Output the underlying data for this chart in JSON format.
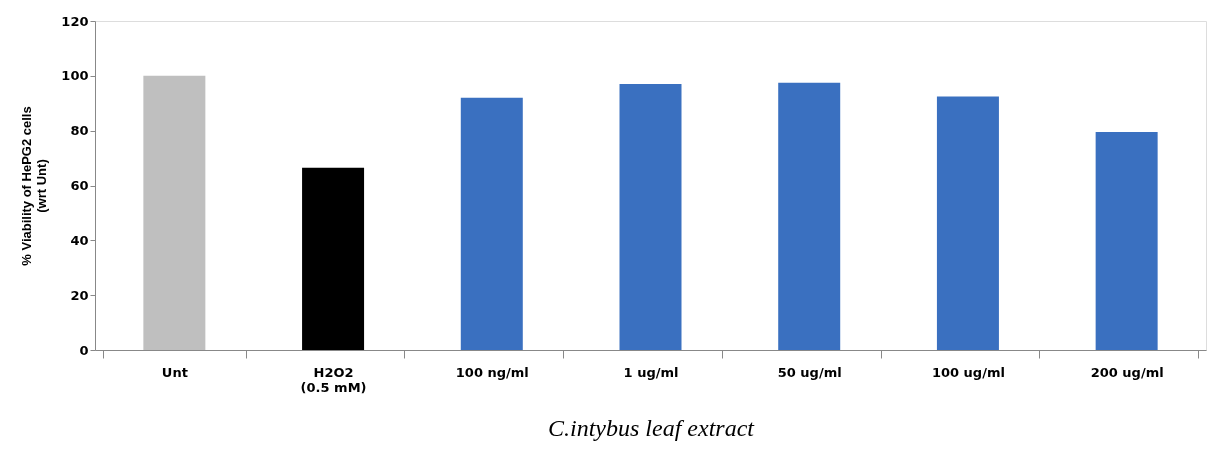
{
  "chart_data": {
    "type": "bar",
    "categories": [
      "Unt",
      "H2O2\n(0.5 mM)",
      "100 ng/ml",
      "1 ug/ml",
      "50 ug/ml",
      "100 ug/ml",
      "200 ug/ml"
    ],
    "values": [
      100,
      66.5,
      92,
      97,
      97.5,
      92.5,
      79.5
    ],
    "colors": [
      "#bfbfbf",
      "#000000",
      "#3a70c0",
      "#3a70c0",
      "#3a70c0",
      "#3a70c0",
      "#3a70c0"
    ],
    "ylabel": "% Viability of HePG2 cells\n(wrt Unt)",
    "xlabel": "C.intybus leaf extract",
    "ylim": [
      0,
      120
    ],
    "yticks": [
      0,
      20,
      40,
      60,
      80,
      100,
      120
    ],
    "grid": false
  }
}
